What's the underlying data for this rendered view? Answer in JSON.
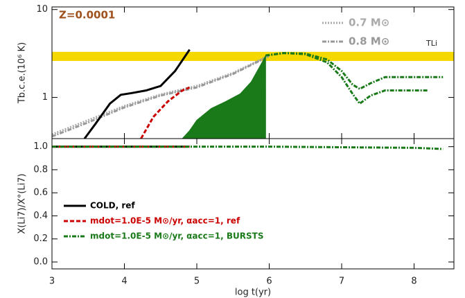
{
  "chart_data": [
    {
      "type": "line",
      "ylabel": "Tb.c.e.(10⁶ K)",
      "annotation": "Z=0.0001",
      "annotation_color": "#a0521e",
      "band": [
        2.6,
        3.3
      ],
      "band_color": "#f5d800",
      "band_label": "TLi",
      "band_label_color": "#b8a000",
      "xlim": [
        3,
        8.55
      ],
      "xticks": [
        3,
        4,
        5,
        6,
        7,
        8
      ],
      "show_xtick_labels": false,
      "ylim": [
        0.34,
        10.7
      ],
      "ylog": true,
      "yticks": [
        1,
        10
      ],
      "legend": "upper right",
      "series": [
        {
          "name": "0.7 M⊙",
          "color": "#aaaaaa",
          "style": "dotted",
          "x": [
            3.0,
            3.5,
            4.0,
            4.5,
            5.0,
            5.5,
            5.8,
            6.0
          ],
          "values": [
            0.38,
            0.55,
            0.8,
            1.08,
            1.35,
            1.9,
            2.5,
            3.0
          ]
        },
        {
          "name": "0.8 M⊙",
          "color": "#999999",
          "style": "dashdot",
          "x": [
            3.0,
            3.5,
            4.0,
            4.5,
            5.0,
            5.5,
            5.8,
            6.0
          ],
          "values": [
            0.36,
            0.52,
            0.77,
            1.05,
            1.3,
            1.85,
            2.45,
            2.95
          ]
        },
        {
          "color": "#000000",
          "style": "solid",
          "x": [
            3.45,
            3.6,
            3.8,
            3.95,
            4.1,
            4.3,
            4.5,
            4.7,
            4.9
          ],
          "values": [
            0.34,
            0.5,
            0.85,
            1.07,
            1.12,
            1.2,
            1.35,
            2.0,
            3.5
          ]
        },
        {
          "color": "#cc0000",
          "style": "dashed",
          "x": [
            4.23,
            4.4,
            4.6,
            4.8,
            4.9
          ],
          "values": [
            0.34,
            0.6,
            0.9,
            1.2,
            1.3
          ]
        },
        {
          "color": "#1a7a1a",
          "style": "area",
          "x": [
            4.8,
            4.9,
            5.0,
            5.2,
            5.4,
            5.6,
            5.75,
            5.9,
            5.95
          ],
          "values": [
            0.34,
            0.42,
            0.55,
            0.75,
            0.9,
            1.1,
            1.5,
            2.5,
            3.0
          ]
        },
        {
          "color": "#1a7a1a",
          "style": "dashdot",
          "x": [
            5.95,
            6.2,
            6.5,
            6.8,
            7.0,
            7.15,
            7.25,
            7.4,
            7.6,
            8.0,
            8.2
          ],
          "values": [
            3.0,
            3.2,
            3.1,
            2.5,
            1.7,
            1.1,
            0.85,
            1.05,
            1.2,
            1.2,
            1.2
          ]
        },
        {
          "color": "#1a7a1a",
          "style": "dashdot",
          "x": [
            5.95,
            6.2,
            6.5,
            6.8,
            7.0,
            7.15,
            7.25,
            7.4,
            7.6,
            8.0,
            8.4
          ],
          "values": [
            3.0,
            3.2,
            3.15,
            2.7,
            2.0,
            1.4,
            1.25,
            1.45,
            1.7,
            1.7,
            1.7
          ]
        }
      ]
    },
    {
      "type": "line",
      "ylabel": "X(Li7)/X°(Li7)",
      "xlabel": "log t(yr)",
      "xlim": [
        3,
        8.55
      ],
      "xticks": [
        3,
        4,
        5,
        6,
        7,
        8
      ],
      "show_xtick_labels": true,
      "ylim": [
        -0.06,
        1.07
      ],
      "yticks": [
        {
          "value": 0,
          "label": "0.0"
        },
        {
          "value": 0.2,
          "label": "0.2"
        },
        {
          "value": 0.4,
          "label": "0.4"
        },
        {
          "value": 0.6,
          "label": "0.6"
        },
        {
          "value": 0.8,
          "label": "0.8"
        },
        {
          "value": 1,
          "label": "1.0"
        }
      ],
      "legend": "lower left",
      "series": [
        {
          "name": "COLD, ref",
          "color": "#000000",
          "style": "solid",
          "x": [
            3.0,
            4.9
          ],
          "values": [
            1.0,
            1.0
          ]
        },
        {
          "name": "mdot=1.0E-5 M⊙/yr, αacc=1, ref",
          "color": "#cc0000",
          "style": "dashed",
          "x": [
            3.0,
            4.9
          ],
          "values": [
            1.0,
            1.0
          ]
        },
        {
          "name": "mdot=1.0E-5 M⊙/yr, αacc=1, BURSTS",
          "color": "#1a7a1a",
          "style": "dashdot",
          "x": [
            3.0,
            6.0,
            7.0,
            8.0,
            8.4
          ],
          "values": [
            1.0,
            1.0,
            0.995,
            0.99,
            0.98
          ]
        }
      ]
    }
  ]
}
